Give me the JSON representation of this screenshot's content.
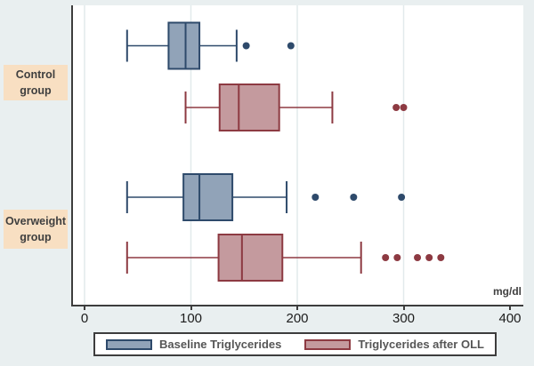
{
  "chart_data": {
    "type": "boxplot",
    "orientation": "horizontal",
    "title": "",
    "xlabel": "mg/dl",
    "x_ticks": [
      0,
      100,
      200,
      300,
      400
    ],
    "xlim": [
      -11,
      412
    ],
    "grid_x": [
      0,
      100,
      200,
      300
    ],
    "legend_position": "bottom",
    "groups": [
      {
        "label": "Control group",
        "series": [
          {
            "name": "Baseline Triglycerides",
            "min": 40,
            "q1": 79,
            "median": 95,
            "q3": 108,
            "max": 143,
            "outliers": [
              152,
              194
            ]
          },
          {
            "name": "Triglycerides after OLL",
            "min": 95,
            "q1": 127,
            "median": 145,
            "q3": 183,
            "max": 233,
            "outliers": [
              293,
              300
            ]
          }
        ]
      },
      {
        "label": "Overweight group",
        "series": [
          {
            "name": "Baseline Triglycerides",
            "min": 40,
            "q1": 93,
            "median": 108,
            "q3": 139,
            "max": 190,
            "outliers": [
              217,
              253,
              298
            ]
          },
          {
            "name": "Triglycerides after OLL",
            "min": 40,
            "q1": 126,
            "median": 148,
            "q3": 186,
            "max": 260,
            "outliers": [
              283,
              294,
              313,
              324,
              335
            ]
          }
        ]
      }
    ],
    "legend": {
      "items": [
        {
          "label": "Baseline Triglycerides",
          "fill": "#91a3b8",
          "border": "#2e4a6b"
        },
        {
          "label": "Triglycerides after OLL",
          "fill": "#c49a9e",
          "border": "#8d3a42"
        }
      ]
    }
  },
  "colors": {
    "page_background": "#e9eff0",
    "plot_background": "#ffffff",
    "axis_line": "#3d3d3d",
    "gridline": "#e2eaec",
    "group_label_background": "#f8dfc2",
    "group_label_text": "#3f3f3f",
    "tick_text": "#1c1c1c",
    "legend_text": "#565656"
  }
}
